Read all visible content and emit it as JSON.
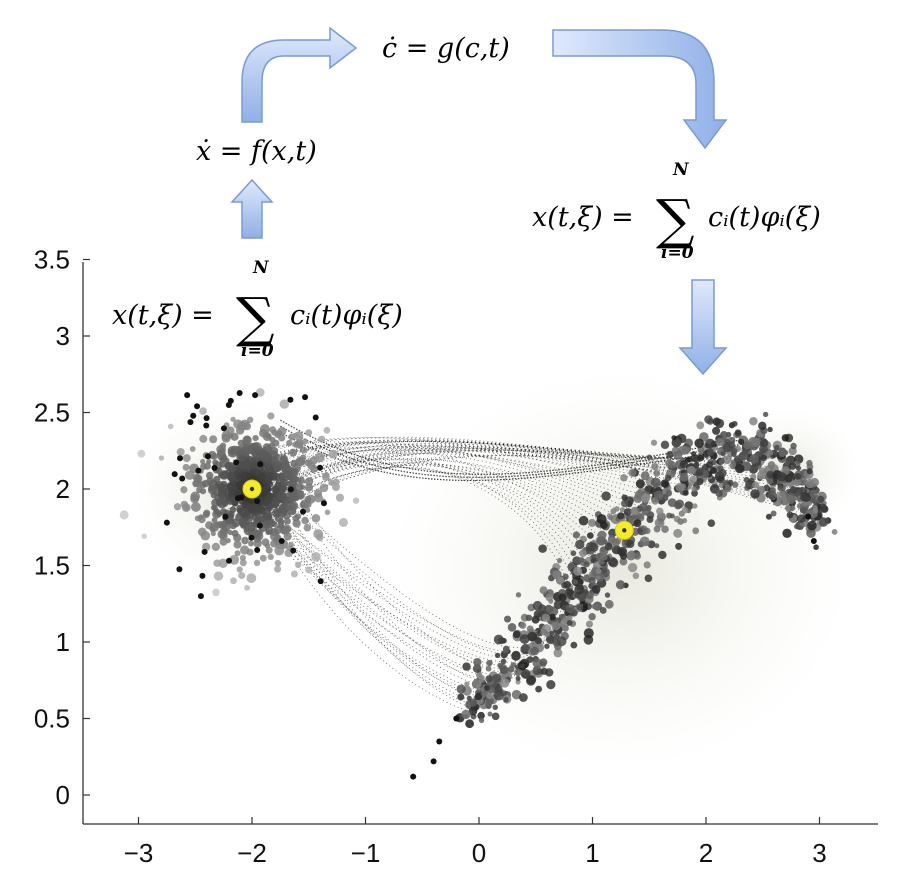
{
  "equations": {
    "x_dot": "ẋ = f(x,t)",
    "c_dot": "ċ = g(c,t)",
    "expansion_left": {
      "lhs": "x(t,ξ) =",
      "rhs": "cᵢ(t)φᵢ(ξ)",
      "upper": "N",
      "lower": "i=0"
    },
    "expansion_right": {
      "lhs": "x(t,ξ) =",
      "rhs": "cᵢ(t)φᵢ(ξ)",
      "upper": "N",
      "lower": "i=0"
    }
  },
  "colors": {
    "arrow_fill": "#a9c4ee",
    "arrow_stroke": "#6d8fcf",
    "marker": "#f4ec2a",
    "points": "#222222"
  },
  "chart_data": {
    "type": "scatter",
    "x_ticks": [
      "−3",
      "−2",
      "−1",
      "0",
      "1",
      "2",
      "3"
    ],
    "y_ticks": [
      "0",
      "0.5",
      "1",
      "1.5",
      "2",
      "2.5",
      "3",
      "3.5"
    ],
    "xlim": [
      -3.4,
      3.5
    ],
    "ylim": [
      -0.1,
      3.5
    ],
    "markers": [
      {
        "x": -2.0,
        "y": 2.0
      },
      {
        "x": 1.28,
        "y": 1.73
      }
    ],
    "cluster_left_center": {
      "x": -2.0,
      "y": 2.0
    },
    "cluster_right_path": [
      {
        "x": -0.1,
        "y": 0.55
      },
      {
        "x": 0.2,
        "y": 0.75
      },
      {
        "x": 0.5,
        "y": 1.0
      },
      {
        "x": 0.8,
        "y": 1.3
      },
      {
        "x": 1.1,
        "y": 1.55
      },
      {
        "x": 1.4,
        "y": 1.82
      },
      {
        "x": 1.75,
        "y": 2.05
      },
      {
        "x": 2.1,
        "y": 2.22
      },
      {
        "x": 2.5,
        "y": 2.2
      },
      {
        "x": 2.8,
        "y": 2.0
      },
      {
        "x": 3.0,
        "y": 1.8
      }
    ]
  }
}
